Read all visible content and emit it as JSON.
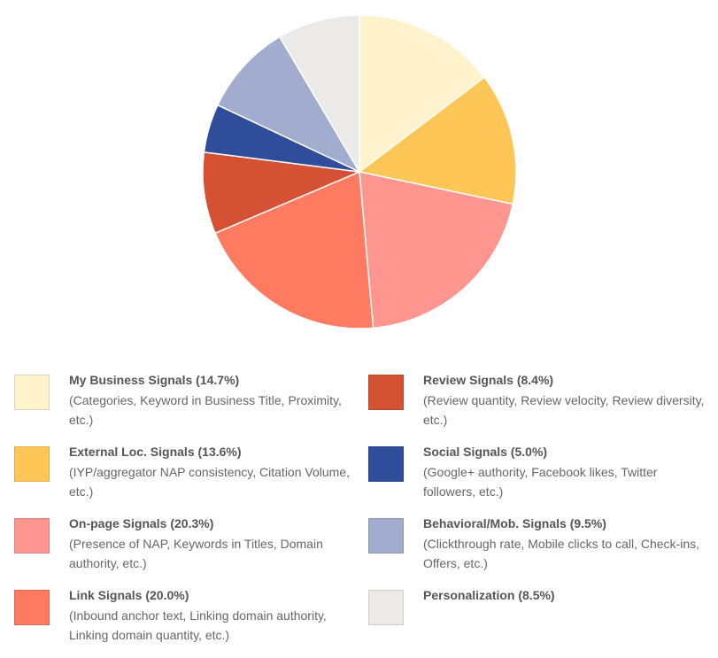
{
  "chart_data": {
    "type": "pie",
    "title": "",
    "slices": [
      {
        "label": "My Business Signals (14.7%)",
        "description": "(Categories, Keyword in Business Title, Proximity, etc.)",
        "value": 14.7,
        "color": "#fff3cd"
      },
      {
        "label": "External Loc. Signals (13.6%)",
        "description": "(IYP/aggregator NAP consistency, Citation Volume, etc.)",
        "value": 13.6,
        "color": "#fdc656"
      },
      {
        "label": "On-page Signals (20.3%)",
        "description": "(Presence of NAP, Keywords in Titles, Domain authority, etc.)",
        "value": 20.3,
        "color": "#fe968f"
      },
      {
        "label": "Link Signals (20.0%)",
        "description": "(Inbound anchor text, Linking domain authority, Linking domain quantity, etc.)",
        "value": 20.0,
        "color": "#fe7a61"
      },
      {
        "label": "Review Signals (8.4%)",
        "description": "(Review quantity, Review velocity, Review diversity, etc.)",
        "value": 8.4,
        "color": "#d55134"
      },
      {
        "label": "Social Signals (5.0%)",
        "description": "(Google+ authority, Facebook likes, Twitter followers, etc.)",
        "value": 5.0,
        "color": "#2f4d9b"
      },
      {
        "label": "Behavioral/Mob. Signals (9.5%)",
        "description": "(Clickthrough rate, Mobile clicks to call, Check-ins, Offers, etc.)",
        "value": 9.5,
        "color": "#a1acce"
      },
      {
        "label": "Personalization (8.5%)",
        "description": "",
        "value": 8.5,
        "color": "#ece9e9"
      }
    ],
    "legend_position": "bottom",
    "start_angle": "top, clockwise"
  }
}
